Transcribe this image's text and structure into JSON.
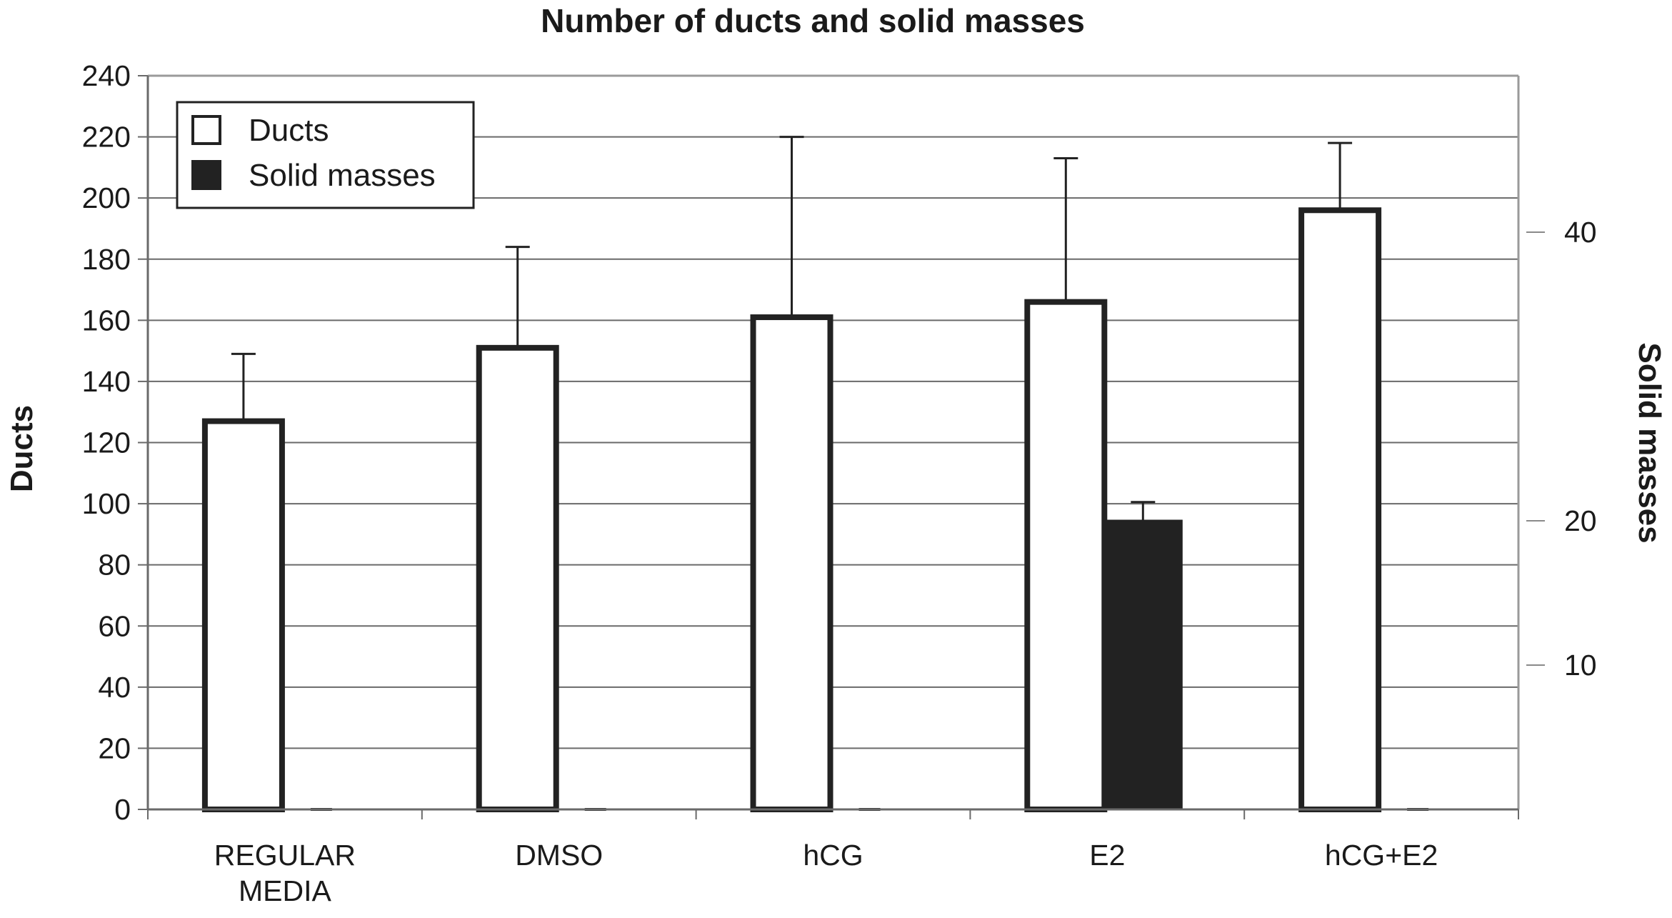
{
  "chart_data": {
    "type": "bar",
    "title": "Number of ducts and solid masses",
    "categories": [
      [
        "REGULAR",
        "MEDIA"
      ],
      [
        "DMSO"
      ],
      [
        "hCG"
      ],
      [
        "E2"
      ],
      [
        "hCG+E2"
      ]
    ],
    "ylabel": "Ducts",
    "y2label": "Solid masses",
    "ylim": [
      0,
      240
    ],
    "yticks": [
      "0",
      "20",
      "40",
      "60",
      "80",
      "100",
      "120",
      "140",
      "160",
      "180",
      "200",
      "220",
      "240"
    ],
    "y2ticks": [
      {
        "value": 10,
        "label": "10"
      },
      {
        "value": 20,
        "label": "20"
      },
      {
        "value": 40,
        "label": "40"
      }
    ],
    "grid": true,
    "legend_position": "top-left",
    "series": [
      {
        "name": "Ducts",
        "axis": "left",
        "fill": "#ffffff",
        "stroke": "#222222",
        "values": [
          127,
          151,
          161,
          166,
          196
        ],
        "errors": [
          22,
          33,
          59,
          47,
          22
        ]
      },
      {
        "name": "Solid masses",
        "axis": "right",
        "fill": "#222222",
        "stroke": "#222222",
        "values": [
          0,
          0,
          0,
          20,
          0
        ],
        "errors": [
          0,
          0,
          0,
          1.3,
          0
        ]
      }
    ]
  }
}
